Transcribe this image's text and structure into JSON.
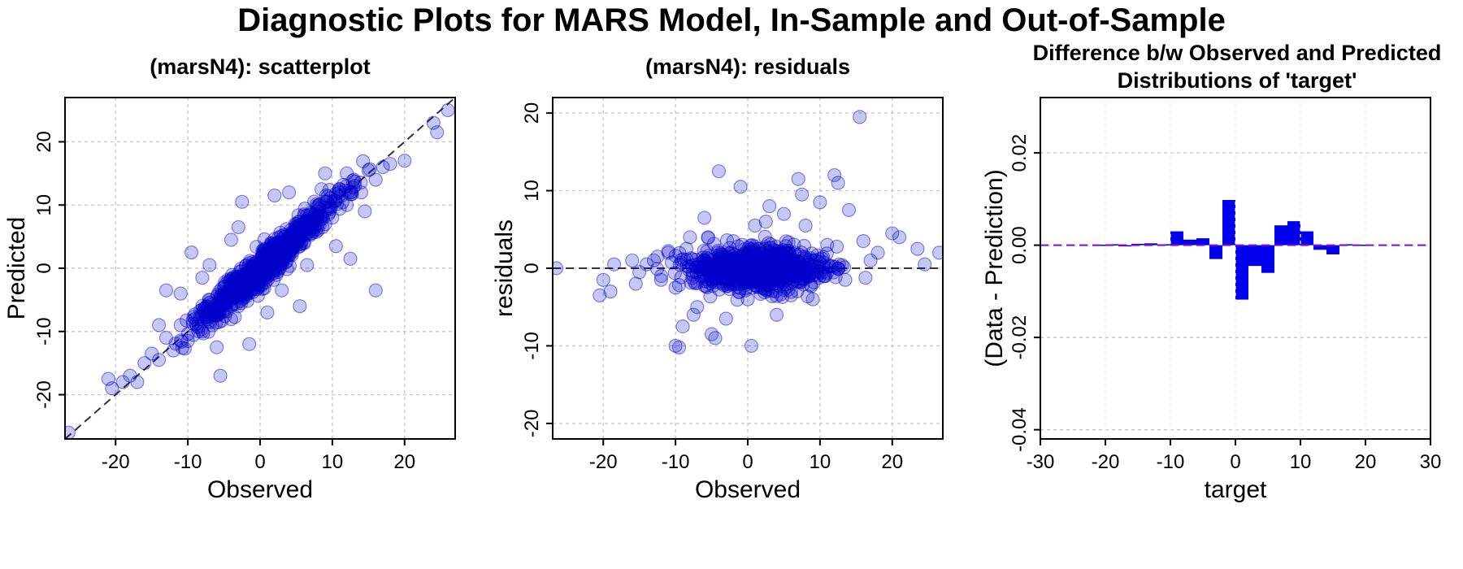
{
  "title": "Diagnostic Plots for MARS Model, In-Sample and Out-of-Sample",
  "colors": {
    "points": "#0000cd",
    "bars": "#0000ee",
    "zero_line": "#9400d3",
    "ref_line": "#333333",
    "grid": "#c8c8c8"
  },
  "chart_data": [
    {
      "type": "scatter",
      "title": "(marsN4): scatterplot",
      "xlabel": "Observed",
      "ylabel": "Predicted",
      "xlim": [
        -27,
        27
      ],
      "ylim": [
        -27,
        27
      ],
      "xticks": [
        -20,
        -10,
        0,
        10,
        20
      ],
      "yticks": [
        -20,
        -10,
        0,
        10,
        20
      ],
      "grid": true,
      "reference_line": "y = x (dashed)",
      "points": [
        [
          -26.5,
          -26.0
        ],
        [
          -21.0,
          -17.5
        ],
        [
          -20.5,
          -19.0
        ],
        [
          -19.0,
          -18.0
        ],
        [
          -18.0,
          -17.0
        ],
        [
          -17.0,
          -18.0
        ],
        [
          -16.0,
          -15.0
        ],
        [
          -15.0,
          -13.5
        ],
        [
          -14.0,
          -14.5
        ],
        [
          -13.0,
          -11.0
        ],
        [
          -12.0,
          -13.0
        ],
        [
          -11.0,
          -9.0
        ],
        [
          -10.0,
          -11.5
        ],
        [
          -9.0,
          -8.0
        ],
        [
          -8.0,
          -10.0
        ],
        [
          -7.0,
          -5.5
        ],
        [
          -6.0,
          -7.5
        ],
        [
          -5.0,
          -3.0
        ],
        [
          -4.0,
          -6.0
        ],
        [
          -3.0,
          -1.5
        ],
        [
          -2.0,
          -4.0
        ],
        [
          -1.0,
          1.0
        ],
        [
          0.0,
          -1.5
        ],
        [
          1.0,
          2.5
        ],
        [
          2.0,
          0.0
        ],
        [
          3.0,
          4.5
        ],
        [
          4.0,
          2.0
        ],
        [
          5.0,
          6.5
        ],
        [
          6.0,
          4.0
        ],
        [
          7.0,
          8.5
        ],
        [
          8.0,
          6.0
        ],
        [
          9.0,
          10.5
        ],
        [
          10.0,
          8.0
        ],
        [
          11.0,
          12.5
        ],
        [
          12.0,
          10.0
        ],
        [
          13.0,
          14.0
        ],
        [
          14.0,
          12.0
        ],
        [
          15.0,
          15.5
        ],
        [
          16.0,
          14.0
        ],
        [
          17.0,
          16.0
        ],
        [
          18.0,
          16.5
        ],
        [
          20.0,
          17.0
        ],
        [
          24.0,
          23.0
        ],
        [
          24.5,
          21.5
        ],
        [
          26.0,
          25.0
        ],
        [
          -5.5,
          -17.0
        ],
        [
          -1.5,
          -12.0
        ],
        [
          16.0,
          -3.5
        ],
        [
          -2.5,
          10.5
        ],
        [
          2.0,
          11.5
        ],
        [
          12.5,
          1.5
        ],
        [
          -9.5,
          2.5
        ],
        [
          -13.0,
          -3.5
        ],
        [
          5.5,
          -6.0
        ],
        [
          1.0,
          -7.0
        ],
        [
          -6.0,
          -12.5
        ],
        [
          8.5,
          12.5
        ],
        [
          -4.0,
          4.5
        ],
        [
          4.0,
          12.0
        ],
        [
          10.5,
          3.5
        ],
        [
          -8.0,
          -1.5
        ],
        [
          6.5,
          0.5
        ],
        [
          -3.0,
          6.5
        ],
        [
          -11.0,
          -4.0
        ],
        [
          3.0,
          -3.5
        ],
        [
          9.0,
          15.0
        ],
        [
          12.0,
          15.0
        ],
        [
          14.5,
          9.0
        ],
        [
          -14.0,
          -9.0
        ],
        [
          -7.0,
          0.5
        ]
      ]
    },
    {
      "type": "scatter",
      "title": "(marsN4): residuals",
      "xlabel": "Observed",
      "ylabel": "residuals",
      "xlim": [
        -27,
        27
      ],
      "ylim": [
        -22,
        22
      ],
      "xticks": [
        -20,
        -10,
        0,
        10,
        20
      ],
      "yticks": [
        -20,
        -10,
        0,
        10,
        20
      ],
      "grid": true,
      "reference_line": "y = 0 (dashed)",
      "points": [
        [
          -26.5,
          0.0
        ],
        [
          -20.5,
          -3.5
        ],
        [
          -20.0,
          -1.5
        ],
        [
          -19.0,
          -3.0
        ],
        [
          -18.5,
          0.5
        ],
        [
          -16.0,
          1.0
        ],
        [
          -15.0,
          -0.5
        ],
        [
          -14.0,
          0.5
        ],
        [
          -13.0,
          1.0
        ],
        [
          -12.0,
          -1.5
        ],
        [
          -11.0,
          2.0
        ],
        [
          -10.0,
          -2.5
        ],
        [
          -10.0,
          -10.0
        ],
        [
          -9.5,
          -10.2
        ],
        [
          -9.0,
          -7.5
        ],
        [
          -8.0,
          4.0
        ],
        [
          -7.0,
          -5.0
        ],
        [
          -6.0,
          6.5
        ],
        [
          -5.0,
          -8.5
        ],
        [
          -4.5,
          -9.0
        ],
        [
          -4.0,
          12.5
        ],
        [
          -3.0,
          -6.5
        ],
        [
          -2.0,
          3.5
        ],
        [
          -1.0,
          10.5
        ],
        [
          0.0,
          -4.0
        ],
        [
          0.5,
          -10.0
        ],
        [
          1.0,
          5.5
        ],
        [
          2.0,
          -2.5
        ],
        [
          3.0,
          8.0
        ],
        [
          4.0,
          -6.0
        ],
        [
          5.0,
          7.0
        ],
        [
          6.0,
          -3.5
        ],
        [
          7.0,
          11.5
        ],
        [
          8.0,
          5.5
        ],
        [
          9.0,
          -4.0
        ],
        [
          10.0,
          8.5
        ],
        [
          11.0,
          3.0
        ],
        [
          12.0,
          12.0
        ],
        [
          12.5,
          11.0
        ],
        [
          14.0,
          7.5
        ],
        [
          15.5,
          19.5
        ],
        [
          16.0,
          3.5
        ],
        [
          17.0,
          1.0
        ],
        [
          18.0,
          2.0
        ],
        [
          20.0,
          4.5
        ],
        [
          21.0,
          4.0
        ],
        [
          23.5,
          2.5
        ],
        [
          24.5,
          0.5
        ],
        [
          26.5,
          2.0
        ],
        [
          -12.5,
          1.5
        ],
        [
          -8.5,
          2.5
        ],
        [
          -6.5,
          -1.0
        ],
        [
          -3.5,
          1.5
        ],
        [
          -2.5,
          -2.0
        ],
        [
          1.5,
          2.5
        ],
        [
          3.5,
          1.0
        ],
        [
          4.5,
          -1.5
        ],
        [
          6.5,
          2.0
        ],
        [
          8.5,
          0.5
        ],
        [
          10.5,
          -1.0
        ],
        [
          -15.5,
          -2.0
        ],
        [
          13.5,
          -1.5
        ],
        [
          -5.5,
          4.0
        ],
        [
          2.5,
          6.0
        ],
        [
          7.5,
          9.5
        ],
        [
          -7.5,
          -6.0
        ]
      ]
    },
    {
      "type": "bar",
      "title_lines": [
        "Difference b/w Observed and Predicted",
        "Distributions of 'target'"
      ],
      "xlabel": "target",
      "ylabel": "(Data - Prediction)",
      "xlim": [
        -30,
        30
      ],
      "ylim": [
        -0.042,
        0.032
      ],
      "xticks": [
        -30,
        -20,
        -10,
        0,
        10,
        20,
        30
      ],
      "yticks": [
        -0.04,
        -0.02,
        0.0,
        0.02
      ],
      "ytick_labels": [
        "-0.04",
        "-0.02",
        "0.00",
        "0.02"
      ],
      "grid": true,
      "reference_line": "y = 0 (dashed purple)",
      "bin_width": 2,
      "bins": [
        -21,
        -19,
        -17,
        -15,
        -13,
        -11,
        -9,
        -7,
        -5,
        -3,
        -1,
        1,
        3,
        5,
        7,
        9,
        11,
        13,
        15,
        17,
        19
      ],
      "values": [
        0.0001,
        0.0002,
        -0.0002,
        0.0003,
        0.0004,
        0.0002,
        0.003,
        0.0012,
        0.0015,
        -0.003,
        0.0098,
        -0.0118,
        -0.0045,
        -0.006,
        0.0043,
        0.0052,
        0.003,
        -0.001,
        -0.002,
        0.0002,
        0.0001
      ]
    }
  ]
}
